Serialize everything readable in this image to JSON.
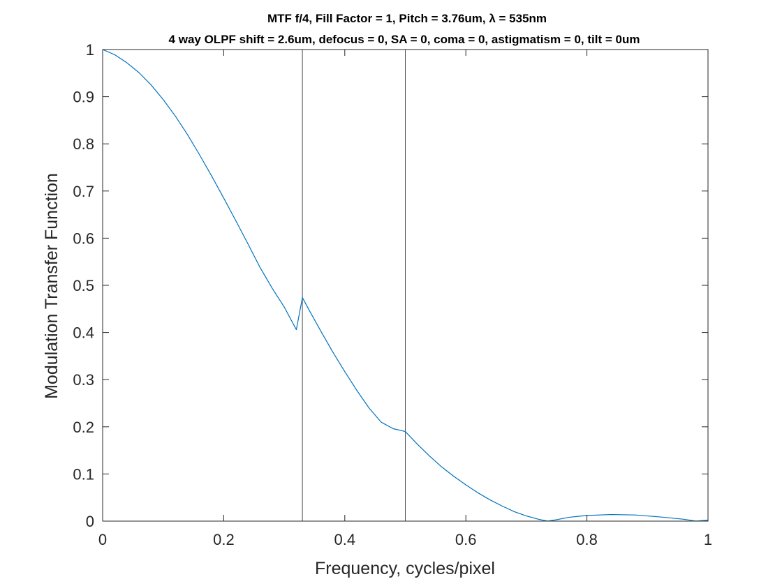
{
  "chart_data": {
    "type": "line",
    "title": "MTF f/4, Fill Factor = 1, Pitch = 3.76um, λ = 535nm",
    "subtitle": "4 way OLPF shift = 2.6um, defocus = 0, SA = 0, coma = 0, astigmatism = 0, tilt = 0um",
    "xlabel": "Frequency, cycles/pixel",
    "ylabel": "Modulation Transfer Function",
    "xlim": [
      0,
      1
    ],
    "ylim": [
      0,
      1
    ],
    "xticks": [
      "0",
      "0.2",
      "0.4",
      "0.6",
      "0.8",
      "1"
    ],
    "yticks": [
      "0",
      "0.1",
      "0.2",
      "0.3",
      "0.4",
      "0.5",
      "0.6",
      "0.7",
      "0.8",
      "0.9",
      "1"
    ],
    "grid": false,
    "legend": "none",
    "reference_lines_x": [
      0.33,
      0.5
    ],
    "series": [
      {
        "color": "#0072BD",
        "x": [
          0,
          0.02,
          0.04,
          0.06,
          0.08,
          0.1,
          0.12,
          0.14,
          0.16,
          0.18,
          0.2,
          0.22,
          0.24,
          0.26,
          0.28,
          0.3,
          0.32,
          0.33,
          0.34,
          0.36,
          0.38,
          0.4,
          0.42,
          0.44,
          0.46,
          0.48,
          0.5,
          0.52,
          0.54,
          0.56,
          0.58,
          0.6,
          0.62,
          0.64,
          0.66,
          0.68,
          0.7,
          0.72,
          0.735,
          0.75,
          0.77,
          0.8,
          0.84,
          0.88,
          0.92,
          0.96,
          0.98,
          1.0
        ],
        "values": [
          1.0,
          0.989,
          0.972,
          0.951,
          0.925,
          0.894,
          0.859,
          0.82,
          0.777,
          0.732,
          0.685,
          0.637,
          0.588,
          0.538,
          0.494,
          0.454,
          0.406,
          0.474,
          0.45,
          0.404,
          0.359,
          0.317,
          0.277,
          0.24,
          0.21,
          0.196,
          0.19,
          0.163,
          0.138,
          0.115,
          0.095,
          0.077,
          0.06,
          0.045,
          0.032,
          0.02,
          0.011,
          0.004,
          0.0,
          0.003,
          0.008,
          0.012,
          0.014,
          0.013,
          0.009,
          0.004,
          0.0,
          0.002
        ]
      }
    ]
  }
}
